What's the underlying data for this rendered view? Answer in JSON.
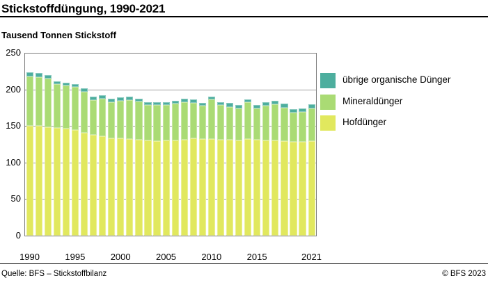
{
  "header": {
    "title": "Stickstoffdüngung, 1990-2021",
    "subtitle": "Tausend Tonnen Stickstoff"
  },
  "footer": {
    "source": "Quelle: BFS – Stickstoffbilanz",
    "copyright": "© BFS 2023"
  },
  "chart_data": {
    "type": "bar",
    "stacked": true,
    "title": "Stickstoffdüngung, 1990-2021",
    "unit_label": "Tausend Tonnen Stickstoff",
    "categories": [
      1990,
      1991,
      1992,
      1993,
      1994,
      1995,
      1996,
      1997,
      1998,
      1999,
      2000,
      2001,
      2002,
      2003,
      2004,
      2005,
      2006,
      2007,
      2008,
      2009,
      2010,
      2011,
      2012,
      2013,
      2014,
      2015,
      2016,
      2017,
      2018,
      2019,
      2020,
      2021
    ],
    "series": [
      {
        "name": "Hofdünger",
        "color": "#e1e85e",
        "values": [
          151,
          151,
          149,
          148,
          147,
          145,
          141,
          138,
          136,
          134,
          134,
          133,
          132,
          131,
          130,
          131,
          131,
          132,
          134,
          133,
          133,
          132,
          132,
          131,
          133,
          132,
          131,
          131,
          130,
          129,
          129,
          130
        ]
      },
      {
        "name": "Mineraldünger",
        "color": "#aadb74",
        "values": [
          68,
          67,
          67,
          60,
          59,
          59,
          57,
          48,
          52,
          49,
          51,
          53,
          52,
          48,
          49,
          48,
          50,
          51,
          48,
          45,
          54,
          47,
          45,
          44,
          50,
          43,
          47,
          49,
          46,
          40,
          41,
          45
        ]
      },
      {
        "name": "übrige organische Dünger",
        "color": "#4dae9e",
        "values": [
          5,
          5,
          4,
          4,
          4,
          4,
          4,
          5,
          5,
          5,
          5,
          5,
          4,
          4,
          4,
          4,
          4,
          5,
          5,
          4,
          4,
          4,
          5,
          4,
          4,
          4,
          5,
          5,
          5,
          5,
          5,
          5
        ]
      }
    ],
    "ylim": [
      0,
      250
    ],
    "yticks": [
      0,
      50,
      100,
      150,
      200,
      250
    ],
    "xtick_labels": [
      "1990",
      "1995",
      "2000",
      "2005",
      "2010",
      "2015",
      "2021"
    ],
    "legend_position": "right",
    "grid": "horizontal"
  }
}
